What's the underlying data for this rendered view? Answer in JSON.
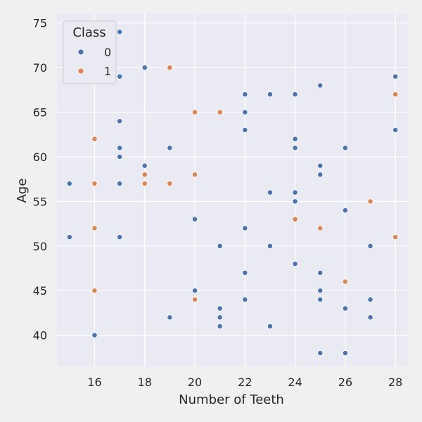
{
  "chart_data": {
    "type": "scatter",
    "xlabel": "Number of Teeth",
    "ylabel": "Age",
    "xlim": [
      14.5,
      28.5
    ],
    "ylim": [
      36.5,
      76
    ],
    "xticks": [
      16,
      18,
      20,
      22,
      24,
      26,
      28
    ],
    "yticks": [
      40,
      45,
      50,
      55,
      60,
      65,
      70,
      75
    ],
    "grid": true,
    "legend": {
      "title": "Class",
      "placement": "top-left"
    },
    "colors": {
      "0": "#4c72b0",
      "1": "#dd8452"
    },
    "series": [
      {
        "name": "0",
        "points": [
          [
            15,
            57
          ],
          [
            15,
            51
          ],
          [
            16,
            40
          ],
          [
            17,
            74
          ],
          [
            17,
            69
          ],
          [
            17,
            64
          ],
          [
            17,
            61
          ],
          [
            17,
            60
          ],
          [
            17,
            57
          ],
          [
            17,
            51
          ],
          [
            18,
            70
          ],
          [
            18,
            59
          ],
          [
            19,
            61
          ],
          [
            19,
            42
          ],
          [
            20,
            53
          ],
          [
            20,
            45
          ],
          [
            21,
            50
          ],
          [
            21,
            43
          ],
          [
            21,
            42
          ],
          [
            21,
            41
          ],
          [
            22,
            67
          ],
          [
            22,
            65
          ],
          [
            22,
            63
          ],
          [
            22,
            52
          ],
          [
            22,
            47
          ],
          [
            22,
            44
          ],
          [
            23,
            67
          ],
          [
            23,
            56
          ],
          [
            23,
            50
          ],
          [
            23,
            41
          ],
          [
            24,
            67
          ],
          [
            24,
            62
          ],
          [
            24,
            61
          ],
          [
            24,
            56
          ],
          [
            24,
            55
          ],
          [
            24,
            48
          ],
          [
            25,
            68
          ],
          [
            25,
            59
          ],
          [
            25,
            58
          ],
          [
            25,
            47
          ],
          [
            25,
            45
          ],
          [
            25,
            44
          ],
          [
            25,
            38
          ],
          [
            26,
            61
          ],
          [
            26,
            54
          ],
          [
            26,
            43
          ],
          [
            26,
            38
          ],
          [
            27,
            50
          ],
          [
            27,
            44
          ],
          [
            27,
            42
          ],
          [
            28,
            69
          ],
          [
            28,
            63
          ]
        ]
      },
      {
        "name": "1",
        "points": [
          [
            16,
            62
          ],
          [
            16,
            57
          ],
          [
            16,
            52
          ],
          [
            16,
            45
          ],
          [
            18,
            58
          ],
          [
            18,
            57
          ],
          [
            19,
            70
          ],
          [
            19,
            57
          ],
          [
            20,
            65
          ],
          [
            20,
            58
          ],
          [
            20,
            44
          ],
          [
            21,
            65
          ],
          [
            24,
            53
          ],
          [
            25,
            52
          ],
          [
            26,
            46
          ],
          [
            27,
            55
          ],
          [
            28,
            67
          ],
          [
            28,
            51
          ]
        ]
      }
    ]
  }
}
